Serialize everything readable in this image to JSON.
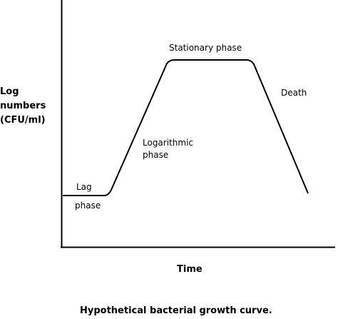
{
  "ylabel": [
    "Log",
    "numbers",
    "(CFU/ml)"
  ],
  "xlabel": "Time",
  "caption": "Hypothetical bacterial growth curve.",
  "phases": {
    "lag": [
      "Lag",
      "phase"
    ],
    "logarithmic": [
      "Logarithmic",
      "phase"
    ],
    "stationary": "Stationary phase",
    "death": "Death"
  },
  "colors": {
    "ink": "#000000",
    "background": "#ffffff"
  }
}
